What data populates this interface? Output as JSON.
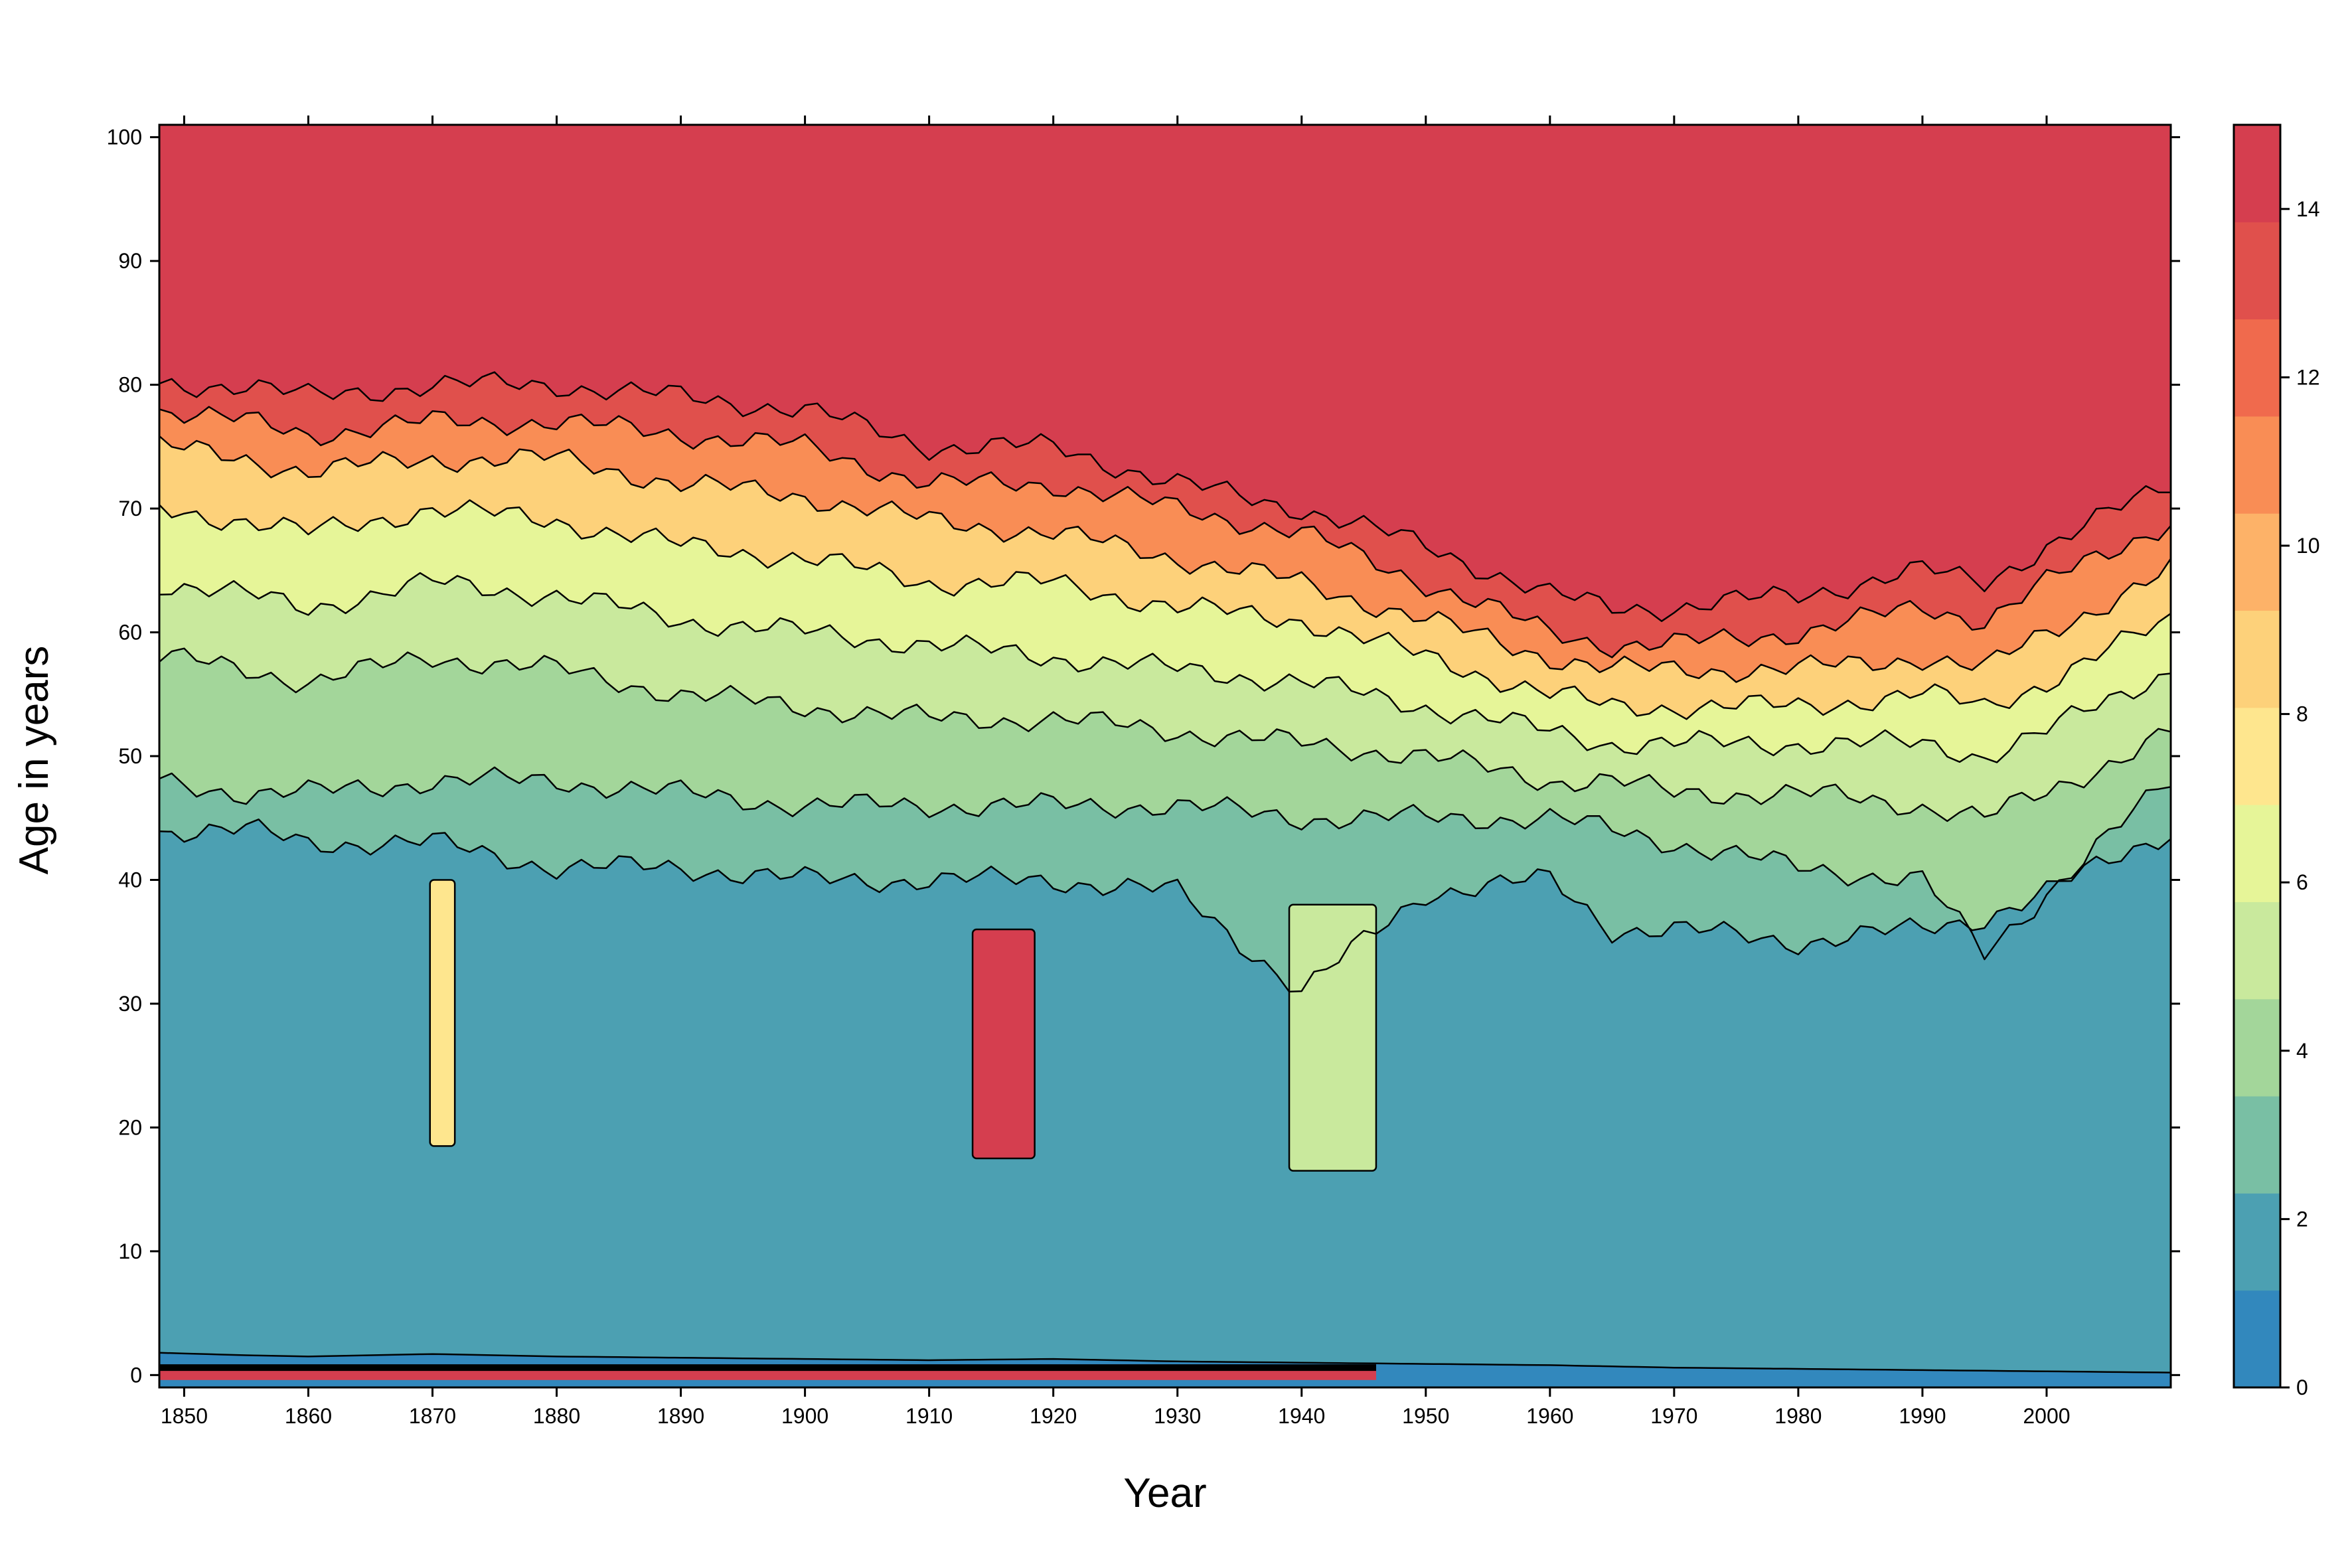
{
  "chart_data": {
    "type": "heatmap",
    "subtype": "filled contour",
    "title": "",
    "xlabel": "Year",
    "ylabel": "Age in years",
    "xlim": [
      1848,
      2010
    ],
    "ylim": [
      -1,
      101
    ],
    "x_ticks": [
      1850,
      1860,
      1870,
      1880,
      1890,
      1900,
      1910,
      1920,
      1930,
      1940,
      1950,
      1960,
      1970,
      1980,
      1990,
      2000
    ],
    "y_ticks": [
      0,
      10,
      20,
      30,
      40,
      50,
      60,
      70,
      80,
      90,
      100
    ],
    "colorbar": {
      "range": [
        0,
        15
      ],
      "tick_labels": [
        0,
        2,
        4,
        6,
        8,
        10,
        12,
        14
      ],
      "colors": [
        "#3288bd",
        "#4ca0b2",
        "#79bfa4",
        "#a3d69a",
        "#c9e99d",
        "#e6f598",
        "#fee68e",
        "#fdd17a",
        "#fdb268",
        "#f98d55",
        "#f06a4d",
        "#e0504c",
        "#d53e4f"
      ]
    },
    "series": [
      {
        "x": [
          1848,
          1855,
          1860,
          1870,
          1880,
          1890,
          1900,
          1910,
          1920,
          1930,
          1940,
          1950,
          1960,
          1965,
          1970,
          1980,
          1990,
          1995,
          2000,
          2010
        ],
        "y": [
          80,
          80,
          79,
          80,
          80,
          79,
          78,
          75,
          75,
          72,
          70,
          67,
          63,
          62,
          62,
          63,
          65,
          64,
          67,
          72
        ]
      },
      {
        "x": [
          1848,
          1855,
          1860,
          1870,
          1880,
          1890,
          1900,
          1910,
          1920,
          1930,
          1940,
          1950,
          1960,
          1965,
          1970,
          1980,
          1990,
          1995,
          2000,
          2010
        ],
        "y": [
          78,
          77,
          76,
          77,
          77,
          76,
          75,
          72,
          72,
          70,
          68,
          64,
          60,
          59,
          59,
          60,
          62,
          61,
          64,
          69
        ]
      },
      {
        "x": [
          1848,
          1855,
          1860,
          1870,
          1880,
          1890,
          1900,
          1910,
          1920,
          1930,
          1940,
          1950,
          1960,
          1965,
          1970,
          1980,
          1990,
          1995,
          2000,
          2010
        ],
        "y": [
          75,
          74,
          73,
          74,
          74,
          72,
          71,
          69,
          68,
          66,
          64,
          61,
          58,
          57,
          57,
          57,
          58,
          57,
          60,
          65
        ]
      },
      {
        "x": [
          1848,
          1855,
          1860,
          1870,
          1880,
          1890,
          1900,
          1910,
          1920,
          1930,
          1940,
          1950,
          1960,
          1965,
          1970,
          1980,
          1990,
          1995,
          2000,
          2010
        ],
        "y": [
          70,
          69,
          68,
          70,
          69,
          67,
          66,
          64,
          64,
          62,
          61,
          58,
          55,
          54,
          54,
          54,
          55,
          54,
          56,
          61
        ]
      },
      {
        "x": [
          1848,
          1855,
          1860,
          1870,
          1880,
          1890,
          1900,
          1910,
          1920,
          1930,
          1940,
          1950,
          1960,
          1965,
          1970,
          1980,
          1990,
          1995,
          2000,
          2010
        ],
        "y": [
          64,
          63,
          62,
          64,
          63,
          61,
          60,
          59,
          58,
          57,
          56,
          54,
          52,
          51,
          51,
          51,
          51,
          50,
          52,
          57
        ]
      },
      {
        "x": [
          1848,
          1855,
          1860,
          1870,
          1880,
          1890,
          1900,
          1910,
          1920,
          1930,
          1940,
          1950,
          1960,
          1965,
          1970,
          1980,
          1990,
          1995,
          2000,
          2010
        ],
        "y": [
          58,
          57,
          56,
          58,
          57,
          55,
          54,
          53,
          53,
          52,
          51,
          50,
          48,
          48,
          47,
          47,
          46,
          45,
          47,
          52
        ]
      },
      {
        "x": [
          1848,
          1855,
          1860,
          1870,
          1880,
          1890,
          1900,
          1910,
          1920,
          1930,
          1940,
          1950,
          1960,
          1965,
          1970,
          1980,
          1990,
          1995,
          2000,
          2010
        ],
        "y": [
          48,
          47,
          47,
          48,
          48,
          47,
          46,
          46,
          46,
          46,
          45,
          45,
          45,
          44,
          43,
          41,
          40,
          34,
          39,
          48
        ]
      },
      {
        "x": [
          1848,
          1855,
          1860,
          1870,
          1880,
          1890,
          1900,
          1910,
          1920,
          1930,
          1940,
          1950,
          1960,
          1965,
          1970,
          1980,
          1990,
          1995,
          2000,
          2010
        ],
        "y": [
          44,
          44,
          43,
          43,
          41,
          41,
          40,
          40,
          40,
          39,
          31,
          39,
          40,
          36,
          36,
          35,
          36,
          37,
          39,
          44
        ]
      },
      {
        "x": [
          1848,
          1855,
          1860,
          1870,
          1880,
          1890,
          1900,
          1910,
          1920,
          1930,
          1940,
          1950,
          1960,
          1965,
          1970,
          1980,
          1990,
          1995,
          2000,
          2010
        ],
        "y": [
          1.8,
          1.6,
          1.5,
          1.7,
          1.5,
          1.4,
          1.3,
          1.2,
          1.3,
          1.1,
          1.0,
          0.9,
          0.8,
          0.7,
          0.6,
          0.5,
          0.4,
          0.35,
          0.3,
          0.2
        ]
      }
    ],
    "annotations": [
      {
        "text": "",
        "region": "1914-1918, ages 18-40, values >= 15"
      },
      {
        "text": "",
        "region": "1870-1871, ages 18-40, values 4-15"
      },
      {
        "text": "",
        "region": "1940-1945, ages 18-40, values 4-10"
      }
    ],
    "grid": false,
    "legend": "right colorbar"
  }
}
